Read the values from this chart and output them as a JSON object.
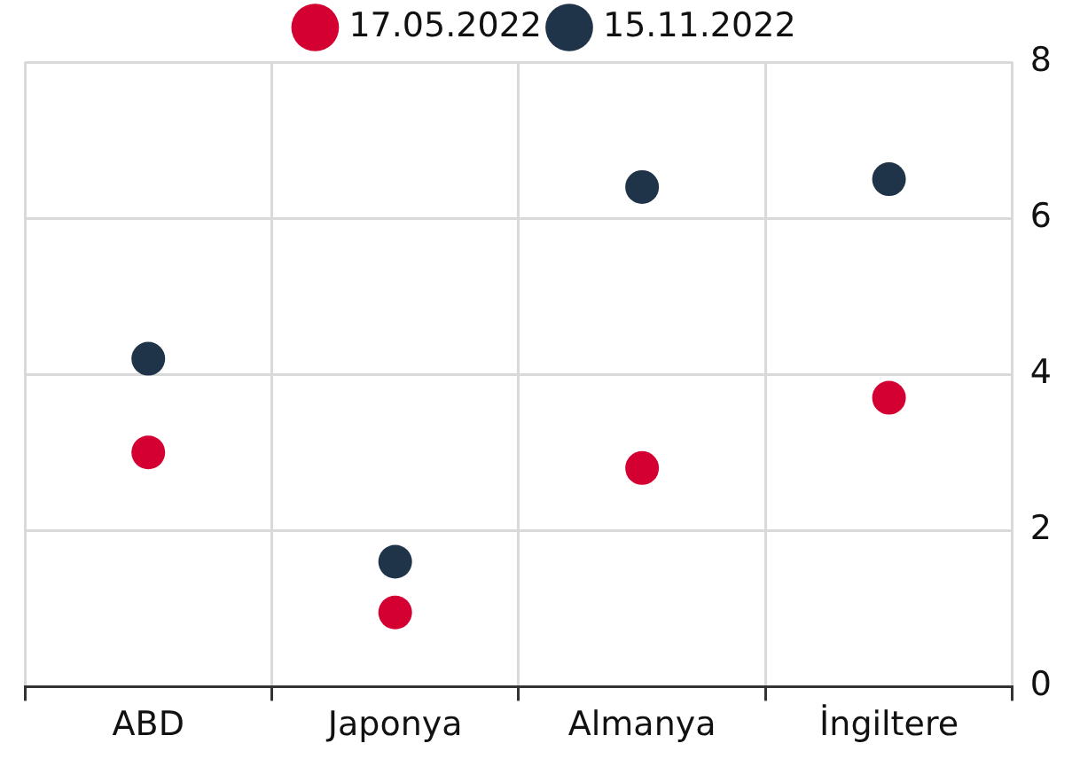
{
  "chart_data": {
    "type": "scatter",
    "categories": [
      "ABD",
      "Japonya",
      "Almanya",
      "İngiltere"
    ],
    "series": [
      {
        "name": "17.05.2022",
        "color": "#d50032",
        "values": [
          3.0,
          0.95,
          2.8,
          3.7
        ]
      },
      {
        "name": "15.11.2022",
        "color": "#1f3349",
        "values": [
          4.2,
          1.6,
          6.4,
          6.5
        ]
      }
    ],
    "ylim": [
      0,
      8
    ],
    "yticks": [
      0,
      2,
      4,
      6,
      8
    ],
    "grid": true,
    "legend": "top",
    "marker": "circle"
  }
}
